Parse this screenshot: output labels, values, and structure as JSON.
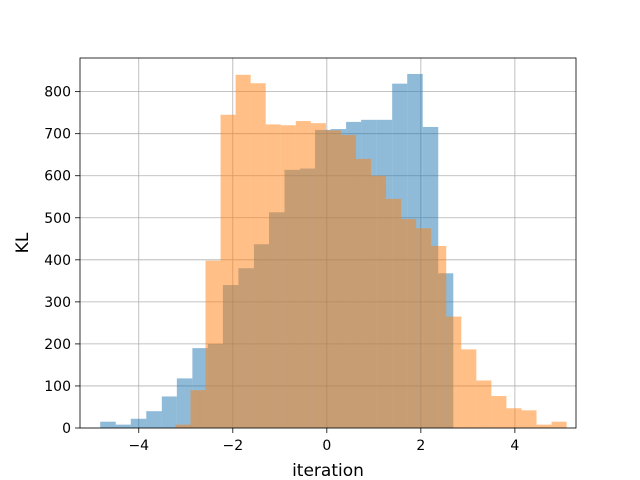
{
  "chart_data": {
    "type": "bar",
    "xlabel": "iteration",
    "ylabel": "KL",
    "xlim": [
      -5.25,
      5.3
    ],
    "ylim": [
      0,
      880
    ],
    "grid": true,
    "xticks": [
      -4,
      -2,
      0,
      2,
      4
    ],
    "yticks": [
      0,
      100,
      200,
      300,
      400,
      500,
      600,
      700,
      800
    ],
    "colors": {
      "series_a": "#1f77b4",
      "series_b": "#ff7f0e"
    },
    "alpha": 0.5,
    "series": [
      {
        "bin_edges": [
          -4.82,
          -4.49,
          -4.17,
          -3.84,
          -3.51,
          -3.19,
          -2.86,
          -2.53,
          -2.21,
          -1.88,
          -1.55,
          -1.23,
          -0.9,
          -0.57,
          -0.25,
          0.08,
          0.41,
          0.73,
          1.06,
          1.39,
          1.71,
          2.04,
          2.37,
          2.69
        ],
        "counts": [
          15,
          8,
          22,
          40,
          75,
          118,
          190,
          200,
          340,
          380,
          437,
          513,
          614,
          617,
          709,
          711,
          728,
          733,
          733,
          819,
          842,
          716,
          368
        ]
      },
      {
        "bin_edges": [
          -3.22,
          -2.9,
          -2.58,
          -2.26,
          -1.94,
          -1.62,
          -1.3,
          -0.98,
          -0.66,
          -0.34,
          -0.02,
          0.3,
          0.62,
          0.94,
          1.26,
          1.58,
          1.9,
          2.22,
          2.54,
          2.86,
          3.18,
          3.5,
          3.82,
          4.14,
          4.46,
          4.78
        ],
        "counts": [
          8,
          90,
          398,
          745,
          840,
          820,
          722,
          720,
          730,
          725,
          708,
          697,
          640,
          600,
          545,
          497,
          475,
          433,
          265,
          187,
          113,
          76,
          47,
          42,
          8,
          15
        ]
      }
    ]
  }
}
